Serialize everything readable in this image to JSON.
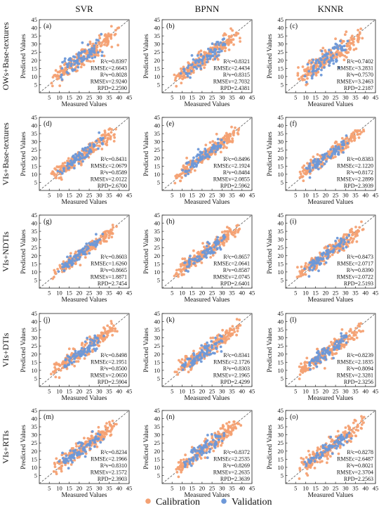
{
  "figure": {
    "columns": [
      "SVR",
      "BPNN",
      "KNNR"
    ],
    "rows": [
      "OWs+Base-textures",
      "VIs+Base-textures",
      "VIs+NDTIs",
      "VIs+DTIs",
      "VIs+RTIs"
    ],
    "legend": {
      "calibration": "Calibration",
      "validation": "Validation"
    },
    "colors": {
      "calibration": "#f4a173",
      "validation": "#6d98d8",
      "identity_line": "#555555"
    }
  },
  "chart_data": [
    {
      "type": "scatter",
      "panel": "(a)",
      "model": "SVR",
      "features": "OWs+Base-textures",
      "xlabel": "Measured Values",
      "ylabel": "Predicted Values",
      "xlim": [
        0,
        45
      ],
      "ylim": [
        0,
        45
      ],
      "xticks": [
        5,
        10,
        15,
        20,
        25,
        30,
        35,
        40,
        45
      ],
      "yticks": [
        5,
        10,
        15,
        20,
        25,
        30,
        35,
        40,
        45
      ],
      "stats": [
        "R²c=0.8397",
        "RMSEc=2.6643",
        "R²v=0.8028",
        "RMSEv=2.9240",
        "RPD=2.2590"
      ],
      "legend": "bottom",
      "grid": false,
      "series": [
        {
          "name": "Calibration",
          "color": "#f4a173",
          "points": 200,
          "x_range": [
            2,
            43
          ],
          "r2": 0.84,
          "rmse": 2.66
        },
        {
          "name": "Validation",
          "color": "#6d98d8",
          "points": 80,
          "x_range": [
            8,
            34
          ],
          "r2": 0.8,
          "rmse": 2.92
        }
      ]
    },
    {
      "type": "scatter",
      "panel": "(b)",
      "model": "BPNN",
      "features": "OWs+Base-textures",
      "xlabel": "Measured Values",
      "ylabel": "Predicted Values",
      "xlim": [
        0,
        45
      ],
      "ylim": [
        0,
        45
      ],
      "xticks": [
        5,
        10,
        15,
        20,
        25,
        30,
        35,
        40,
        45
      ],
      "yticks": [
        5,
        10,
        15,
        20,
        25,
        30,
        35,
        40,
        45
      ],
      "stats": [
        "R²c=0.8321",
        "RMSEc=2.4434",
        "R²v=0.8315",
        "RMSEv=2.7032",
        "RPD=2.4381"
      ],
      "legend": "bottom",
      "grid": false,
      "series": [
        {
          "name": "Calibration",
          "color": "#f4a173",
          "points": 200,
          "x_range": [
            2,
            43
          ],
          "r2": 0.83,
          "rmse": 2.44
        },
        {
          "name": "Validation",
          "color": "#6d98d8",
          "points": 80,
          "x_range": [
            8,
            34
          ],
          "r2": 0.83,
          "rmse": 2.7
        }
      ]
    },
    {
      "type": "scatter",
      "panel": "(c)",
      "model": "KNNR",
      "features": "OWs+Base-textures",
      "xlabel": "Measured Values",
      "ylabel": "Predicted Values",
      "xlim": [
        0,
        45
      ],
      "ylim": [
        0,
        45
      ],
      "xticks": [
        5,
        10,
        15,
        20,
        25,
        30,
        35,
        40,
        45
      ],
      "yticks": [
        5,
        10,
        15,
        20,
        25,
        30,
        35,
        40,
        45
      ],
      "stats": [
        "R²c=0.7402",
        "RMSEc=3.2831",
        "R²v=0.7570",
        "RMSEv=3.2463",
        "RPD=2.2187"
      ],
      "legend": "bottom",
      "grid": false,
      "series": [
        {
          "name": "Calibration",
          "color": "#f4a173",
          "points": 200,
          "x_range": [
            2,
            43
          ],
          "r2": 0.74,
          "rmse": 3.28
        },
        {
          "name": "Validation",
          "color": "#6d98d8",
          "points": 80,
          "x_range": [
            8,
            34
          ],
          "r2": 0.76,
          "rmse": 3.25
        }
      ]
    },
    {
      "type": "scatter",
      "panel": "(d)",
      "model": "SVR",
      "features": "VIs+Base-textures",
      "xlabel": "Measured Values",
      "ylabel": "Predicted Values",
      "xlim": [
        0,
        45
      ],
      "ylim": [
        0,
        45
      ],
      "xticks": [
        5,
        10,
        15,
        20,
        25,
        30,
        35,
        40,
        45
      ],
      "yticks": [
        5,
        10,
        15,
        20,
        25,
        30,
        35,
        40,
        45
      ],
      "stats": [
        "R²c=0.8431",
        "RMSEc=2.0679",
        "R²v=0.8589",
        "RMSEv=2.0122",
        "RPD=2.6700"
      ],
      "legend": "bottom",
      "grid": false,
      "series": [
        {
          "name": "Calibration",
          "color": "#f4a173",
          "points": 200,
          "x_range": [
            2,
            43
          ],
          "r2": 0.84,
          "rmse": 2.07
        },
        {
          "name": "Validation",
          "color": "#6d98d8",
          "points": 80,
          "x_range": [
            8,
            34
          ],
          "r2": 0.86,
          "rmse": 2.01
        }
      ]
    },
    {
      "type": "scatter",
      "panel": "(e)",
      "model": "BPNN",
      "features": "VIs+Base-textures",
      "xlabel": "Measured Values",
      "ylabel": "Predicted Values",
      "xlim": [
        0,
        45
      ],
      "ylim": [
        0,
        45
      ],
      "xticks": [
        5,
        10,
        15,
        20,
        25,
        30,
        35,
        40,
        45
      ],
      "yticks": [
        5,
        10,
        15,
        20,
        25,
        30,
        35,
        40,
        45
      ],
      "stats": [
        "R²c=0.8496",
        "RMSEc=2.1924",
        "R²v=0.8484",
        "RMSEv=2.0855",
        "RPD=2.5962"
      ],
      "legend": "bottom",
      "grid": false,
      "series": [
        {
          "name": "Calibration",
          "color": "#f4a173",
          "points": 200,
          "x_range": [
            2,
            43
          ],
          "r2": 0.85,
          "rmse": 2.19
        },
        {
          "name": "Validation",
          "color": "#6d98d8",
          "points": 80,
          "x_range": [
            8,
            34
          ],
          "r2": 0.85,
          "rmse": 2.09
        }
      ]
    },
    {
      "type": "scatter",
      "panel": "(f)",
      "model": "KNNR",
      "features": "VIs+Base-textures",
      "xlabel": "Measured Values",
      "ylabel": "Predicted Values",
      "xlim": [
        0,
        45
      ],
      "ylim": [
        0,
        45
      ],
      "xticks": [
        5,
        10,
        15,
        20,
        25,
        30,
        35,
        40,
        45
      ],
      "yticks": [
        5,
        10,
        15,
        20,
        25,
        30,
        35,
        40,
        45
      ],
      "stats": [
        "R²c=0.8383",
        "RMSEc=2.1220",
        "R²v=0.8172",
        "RMSEv=2.2899",
        "RPD=2.3939"
      ],
      "legend": "bottom",
      "grid": false,
      "series": [
        {
          "name": "Calibration",
          "color": "#f4a173",
          "points": 200,
          "x_range": [
            2,
            43
          ],
          "r2": 0.84,
          "rmse": 2.12
        },
        {
          "name": "Validation",
          "color": "#6d98d8",
          "points": 80,
          "x_range": [
            8,
            34
          ],
          "r2": 0.82,
          "rmse": 2.29
        }
      ]
    },
    {
      "type": "scatter",
      "panel": "(g)",
      "model": "SVR",
      "features": "VIs+NDTIs",
      "xlabel": "Measured Values",
      "ylabel": "Predicted Values",
      "xlim": [
        0,
        45
      ],
      "ylim": [
        0,
        45
      ],
      "xticks": [
        5,
        10,
        15,
        20,
        25,
        30,
        35,
        40,
        45
      ],
      "yticks": [
        5,
        10,
        15,
        20,
        25,
        30,
        35,
        40,
        45
      ],
      "stats": [
        "R²c=0.8603",
        "RMSEc=1.6260",
        "R²v=0.8665",
        "RMSEv=1.8871",
        "RPD=2.7454"
      ],
      "legend": "bottom",
      "grid": false,
      "series": [
        {
          "name": "Calibration",
          "color": "#f4a173",
          "points": 200,
          "x_range": [
            2,
            43
          ],
          "r2": 0.86,
          "rmse": 1.63
        },
        {
          "name": "Validation",
          "color": "#6d98d8",
          "points": 80,
          "x_range": [
            8,
            34
          ],
          "r2": 0.87,
          "rmse": 1.89
        }
      ]
    },
    {
      "type": "scatter",
      "panel": "(h)",
      "model": "BPNN",
      "features": "VIs+NDTIs",
      "xlabel": "Measured Values",
      "ylabel": "Predicted Values",
      "xlim": [
        0,
        45
      ],
      "ylim": [
        0,
        45
      ],
      "xticks": [
        5,
        10,
        15,
        20,
        25,
        30,
        35,
        40,
        45
      ],
      "yticks": [
        5,
        10,
        15,
        20,
        25,
        30,
        35,
        40,
        45
      ],
      "stats": [
        "R²c=0.8657",
        "RMSEc=2.0641",
        "R²v=0.8587",
        "RMSEv=2.0745",
        "RPD=2.6401"
      ],
      "legend": "bottom",
      "grid": false,
      "series": [
        {
          "name": "Calibration",
          "color": "#f4a173",
          "points": 200,
          "x_range": [
            2,
            43
          ],
          "r2": 0.87,
          "rmse": 2.06
        },
        {
          "name": "Validation",
          "color": "#6d98d8",
          "points": 80,
          "x_range": [
            8,
            34
          ],
          "r2": 0.86,
          "rmse": 2.07
        }
      ]
    },
    {
      "type": "scatter",
      "panel": "(i)",
      "model": "KNNR",
      "features": "VIs+NDTIs",
      "xlabel": "Measured Values",
      "ylabel": "Predicted Values",
      "xlim": [
        0,
        45
      ],
      "ylim": [
        0,
        45
      ],
      "xticks": [
        5,
        10,
        15,
        20,
        25,
        30,
        35,
        40,
        45
      ],
      "yticks": [
        5,
        10,
        15,
        20,
        25,
        30,
        35,
        40,
        45
      ],
      "stats": [
        "R²c=0.8473",
        "RMSEc=2.0717",
        "R²v=0.8390",
        "RMSEv=2.0722",
        "RPD=2.5193"
      ],
      "legend": "bottom",
      "grid": false,
      "series": [
        {
          "name": "Calibration",
          "color": "#f4a173",
          "points": 200,
          "x_range": [
            2,
            43
          ],
          "r2": 0.85,
          "rmse": 2.07
        },
        {
          "name": "Validation",
          "color": "#6d98d8",
          "points": 80,
          "x_range": [
            8,
            34
          ],
          "r2": 0.84,
          "rmse": 2.07
        }
      ]
    },
    {
      "type": "scatter",
      "panel": "(j)",
      "model": "SVR",
      "features": "VIs+DTIs",
      "xlabel": "Measured Values",
      "ylabel": "Predicted Values",
      "xlim": [
        0,
        45
      ],
      "ylim": [
        0,
        45
      ],
      "xticks": [
        5,
        10,
        15,
        20,
        25,
        30,
        35,
        40,
        45
      ],
      "yticks": [
        5,
        10,
        15,
        20,
        25,
        30,
        35,
        40,
        45
      ],
      "stats": [
        "R²c=0.8498",
        "RMSEc=2.1951",
        "R²v=0.8500",
        "RMSEv=2.0650",
        "RPD=2.5904"
      ],
      "legend": "bottom",
      "grid": false,
      "series": [
        {
          "name": "Calibration",
          "color": "#f4a173",
          "points": 200,
          "x_range": [
            2,
            43
          ],
          "r2": 0.85,
          "rmse": 2.2
        },
        {
          "name": "Validation",
          "color": "#6d98d8",
          "points": 80,
          "x_range": [
            8,
            34
          ],
          "r2": 0.85,
          "rmse": 2.07
        }
      ]
    },
    {
      "type": "scatter",
      "panel": "(k)",
      "model": "BPNN",
      "features": "VIs+DTIs",
      "xlabel": "Measured Values",
      "ylabel": "Predicted Values",
      "xlim": [
        0,
        45
      ],
      "ylim": [
        0,
        45
      ],
      "xticks": [
        5,
        10,
        15,
        20,
        25,
        30,
        35,
        40,
        45
      ],
      "yticks": [
        5,
        10,
        15,
        20,
        25,
        30,
        35,
        40,
        45
      ],
      "stats": [
        "R²c=0.8341",
        "RMSEc=2.1726",
        "R²v=0.8303",
        "RMSEv=2.1965",
        "RPD=2.4299"
      ],
      "legend": "bottom",
      "grid": false,
      "series": [
        {
          "name": "Calibration",
          "color": "#f4a173",
          "points": 200,
          "x_range": [
            2,
            43
          ],
          "r2": 0.83,
          "rmse": 2.17
        },
        {
          "name": "Validation",
          "color": "#6d98d8",
          "points": 80,
          "x_range": [
            8,
            34
          ],
          "r2": 0.83,
          "rmse": 2.2
        }
      ]
    },
    {
      "type": "scatter",
      "panel": "(l)",
      "model": "KNNR",
      "features": "VIs+DTIs",
      "xlabel": "Measured Values",
      "ylabel": "Predicted Values",
      "xlim": [
        0,
        45
      ],
      "ylim": [
        0,
        45
      ],
      "xticks": [
        5,
        10,
        15,
        20,
        25,
        30,
        35,
        40,
        45
      ],
      "yticks": [
        5,
        10,
        15,
        20,
        25,
        30,
        35,
        40,
        45
      ],
      "stats": [
        "R²c=0.8239",
        "RMSEc=2.1835",
        "R²v=0.8094",
        "RMSEv=2.3281",
        "RPD=2.3256"
      ],
      "legend": "bottom",
      "grid": false,
      "series": [
        {
          "name": "Calibration",
          "color": "#f4a173",
          "points": 200,
          "x_range": [
            2,
            43
          ],
          "r2": 0.82,
          "rmse": 2.18
        },
        {
          "name": "Validation",
          "color": "#6d98d8",
          "points": 80,
          "x_range": [
            8,
            34
          ],
          "r2": 0.81,
          "rmse": 2.33
        }
      ]
    },
    {
      "type": "scatter",
      "panel": "(m)",
      "model": "SVR",
      "features": "VIs+RTIs",
      "xlabel": "Measured Values",
      "ylabel": "Predicted Values",
      "xlim": [
        0,
        45
      ],
      "ylim": [
        0,
        45
      ],
      "xticks": [
        5,
        10,
        15,
        20,
        25,
        30,
        35,
        40,
        45
      ],
      "yticks": [
        5,
        10,
        15,
        20,
        25,
        30,
        35,
        40,
        45
      ],
      "stats": [
        "R²c=0.8234",
        "RMSEc=2.1966",
        "R²v=0.8310",
        "RMSEv=2.1572",
        "RPD=2.3903"
      ],
      "legend": "bottom",
      "grid": false,
      "series": [
        {
          "name": "Calibration",
          "color": "#f4a173",
          "points": 200,
          "x_range": [
            2,
            43
          ],
          "r2": 0.82,
          "rmse": 2.2
        },
        {
          "name": "Validation",
          "color": "#6d98d8",
          "points": 80,
          "x_range": [
            8,
            34
          ],
          "r2": 0.83,
          "rmse": 2.16
        }
      ]
    },
    {
      "type": "scatter",
      "panel": "(n)",
      "model": "BPNN",
      "features": "VIs+RTIs",
      "xlabel": "Measured Values",
      "ylabel": "Predicted Values",
      "xlim": [
        0,
        45
      ],
      "ylim": [
        0,
        45
      ],
      "xticks": [
        5,
        10,
        15,
        20,
        25,
        30,
        35,
        40,
        45
      ],
      "yticks": [
        5,
        10,
        15,
        20,
        25,
        30,
        35,
        40,
        45
      ],
      "stats": [
        "R²c=0.8372",
        "RMSEc=2.2535",
        "R²v=0.8269",
        "RMSEv=2.2635",
        "RPD=2.3639"
      ],
      "legend": "bottom",
      "grid": false,
      "series": [
        {
          "name": "Calibration",
          "color": "#f4a173",
          "points": 200,
          "x_range": [
            2,
            43
          ],
          "r2": 0.84,
          "rmse": 2.25
        },
        {
          "name": "Validation",
          "color": "#6d98d8",
          "points": 80,
          "x_range": [
            8,
            34
          ],
          "r2": 0.83,
          "rmse": 2.26
        }
      ]
    },
    {
      "type": "scatter",
      "panel": "(o)",
      "model": "KNNR",
      "features": "VIs+RTIs",
      "xlabel": "Measured Values",
      "ylabel": "Predicted Values",
      "xlim": [
        0,
        45
      ],
      "ylim": [
        0,
        45
      ],
      "xticks": [
        5,
        10,
        15,
        20,
        25,
        30,
        35,
        40,
        45
      ],
      "yticks": [
        5,
        10,
        15,
        20,
        25,
        30,
        35,
        40,
        45
      ],
      "stats": [
        "R²c=0.8278",
        "RMSEc=2.6487",
        "R²v=0.8021",
        "RMSEv=2.3704",
        "RPD=2.2563"
      ],
      "legend": "bottom",
      "grid": false,
      "series": [
        {
          "name": "Calibration",
          "color": "#f4a173",
          "points": 200,
          "x_range": [
            2,
            43
          ],
          "r2": 0.83,
          "rmse": 2.65
        },
        {
          "name": "Validation",
          "color": "#6d98d8",
          "points": 80,
          "x_range": [
            8,
            34
          ],
          "r2": 0.8,
          "rmse": 2.37
        }
      ]
    }
  ]
}
